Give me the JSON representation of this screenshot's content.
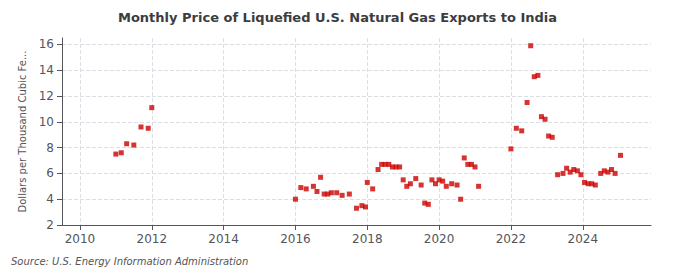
{
  "chart_data": {
    "type": "scatter",
    "title": "Monthly Price of Liquefied U.S. Natural Gas Exports to India",
    "ylabel": "Dollars per Thousand Cubic Fe...",
    "annotation": "Source: U.S. Energy Information Administration",
    "color": "#cc0000",
    "marker": "square",
    "grid": true,
    "xlim": [
      2009.5,
      2025.9
    ],
    "ylim": [
      2,
      16.5
    ],
    "xticks": [
      2010,
      2012,
      2014,
      2016,
      2018,
      2020,
      2022,
      2024
    ],
    "yticks": [
      2,
      4,
      6,
      8,
      10,
      12,
      14,
      16
    ],
    "x": [
      2011.0,
      2011.15,
      2011.3,
      2011.5,
      2011.7,
      2011.9,
      2012.0,
      2016.0,
      2016.15,
      2016.3,
      2016.5,
      2016.6,
      2016.7,
      2016.8,
      2016.9,
      2017.0,
      2017.15,
      2017.3,
      2017.5,
      2017.7,
      2017.85,
      2017.95,
      2018.0,
      2018.15,
      2018.3,
      2018.4,
      2018.5,
      2018.6,
      2018.7,
      2018.8,
      2018.9,
      2019.0,
      2019.1,
      2019.2,
      2019.35,
      2019.5,
      2019.6,
      2019.7,
      2019.8,
      2019.9,
      2020.0,
      2020.1,
      2020.2,
      2020.35,
      2020.5,
      2020.6,
      2020.7,
      2020.8,
      2020.9,
      2021.0,
      2021.1,
      2022.0,
      2022.15,
      2022.3,
      2022.45,
      2022.55,
      2022.65,
      2022.75,
      2022.85,
      2022.95,
      2023.05,
      2023.15,
      2023.3,
      2023.45,
      2023.55,
      2023.65,
      2023.75,
      2023.85,
      2023.95,
      2024.05,
      2024.15,
      2024.25,
      2024.35,
      2024.5,
      2024.6,
      2024.7,
      2024.8,
      2024.9,
      2025.05
    ],
    "values": [
      7.5,
      7.6,
      8.3,
      8.2,
      9.6,
      9.5,
      11.1,
      4.0,
      4.9,
      4.8,
      5.0,
      4.6,
      5.7,
      4.4,
      4.4,
      4.5,
      4.5,
      4.3,
      4.4,
      3.3,
      3.5,
      3.4,
      5.3,
      4.8,
      6.3,
      6.7,
      6.7,
      6.7,
      6.5,
      6.5,
      6.5,
      5.5,
      5.0,
      5.2,
      5.6,
      5.1,
      3.7,
      3.6,
      5.5,
      5.2,
      5.5,
      5.4,
      5.0,
      5.2,
      5.1,
      4.0,
      7.2,
      6.7,
      6.7,
      6.5,
      5.0,
      7.9,
      9.5,
      9.3,
      11.5,
      15.9,
      13.5,
      13.6,
      10.4,
      10.2,
      8.9,
      8.8,
      5.9,
      6.0,
      6.4,
      6.1,
      6.3,
      6.2,
      5.9,
      5.3,
      5.2,
      5.2,
      5.1,
      6.0,
      6.2,
      6.1,
      6.3,
      6.0,
      7.4
    ]
  }
}
